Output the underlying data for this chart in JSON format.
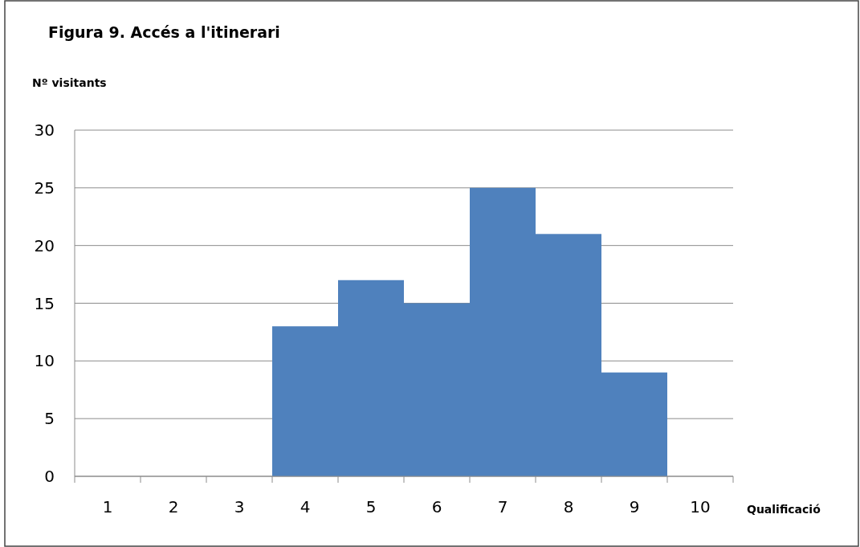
{
  "chart_data": {
    "type": "bar",
    "title": "Figura 9. Accés a l'itinerari",
    "ylabel": "Nº visitants",
    "xlabel": "Qualificació",
    "categories": [
      "1",
      "2",
      "3",
      "4",
      "5",
      "6",
      "7",
      "8",
      "9",
      "10"
    ],
    "values": [
      0,
      0,
      0,
      13,
      17,
      15,
      25,
      21,
      9,
      0
    ],
    "color": "#4f81bd",
    "ylim": [
      0,
      30
    ],
    "yticks": [
      0,
      5,
      10,
      15,
      20,
      25,
      30
    ],
    "grid": "y"
  }
}
